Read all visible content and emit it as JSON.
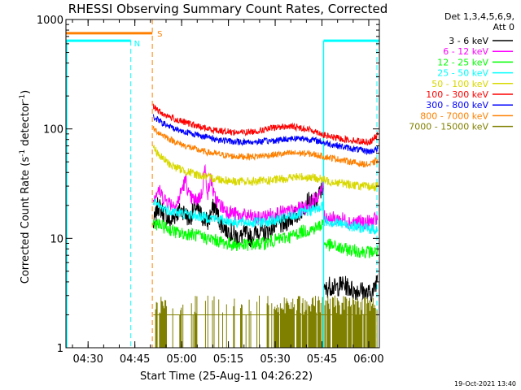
{
  "chart_data": {
    "type": "line",
    "title": "RHESSI Observing Summary Count Rates, Corrected",
    "xlabel": "Start Time (25-Aug-11 04:26:22)",
    "ylabel_main": "Corrected Count Rate (s",
    "ylabel_sup1": "-1",
    "ylabel_mid": " detector",
    "ylabel_sup2": "-1",
    "ylabel_end": ")",
    "y_scale": "log",
    "ylim": [
      1,
      1000
    ],
    "xlim_minutes_from_start": [
      -3.5,
      97
    ],
    "ytick_labels": [
      {
        "label": "1",
        "value": 1
      },
      {
        "label": "10",
        "value": 10
      },
      {
        "label": "100",
        "value": 100
      },
      {
        "label": "1000",
        "value": 1000
      }
    ],
    "xtick_labels": [
      {
        "label": "04:30",
        "minute": 3.6
      },
      {
        "label": "04:45",
        "minute": 18.6
      },
      {
        "label": "05:00",
        "minute": 33.6
      },
      {
        "label": "05:15",
        "minute": 48.6
      },
      {
        "label": "05:30",
        "minute": 63.6
      },
      {
        "label": "05:45",
        "minute": 78.6
      },
      {
        "label": "06:00",
        "minute": 93.6
      }
    ],
    "legend": {
      "placement": "right",
      "header1": "Det 1,3,4,5,6,9,",
      "header2": "Att 0",
      "entries": [
        {
          "label": "3 - 6 keV",
          "color": "#000000"
        },
        {
          "label": "6 - 12 keV",
          "color": "#ff00ff"
        },
        {
          "label": "12 - 25 keV",
          "color": "#00ff00"
        },
        {
          "label": "25 - 50 keV",
          "color": "#00ffff"
        },
        {
          "label": "50 - 100 keV",
          "color": "#d8d800"
        },
        {
          "label": "100 - 300 keV",
          "color": "#ff0000"
        },
        {
          "label": "300 - 800 keV",
          "color": "#0000ff"
        },
        {
          "label": "800 - 7000 keV",
          "color": "#ff8000"
        },
        {
          "label": "7000 - 15000 keV",
          "color": "#808000"
        }
      ]
    },
    "flags": [
      {
        "label": "S",
        "color": "#ff8000",
        "type": "SAA",
        "level": 750,
        "start": -3.5,
        "end": 24.2
      },
      {
        "label": "N",
        "color": "#00ffff",
        "type": "Night",
        "level": 640,
        "spans": [
          [
            -3.5,
            17.3
          ],
          [
            79.1,
            97
          ]
        ]
      }
    ],
    "series": [
      {
        "name": "3 - 6 keV",
        "color": "#000000",
        "noise": 0.09,
        "segments": [
          {
            "x": [
              24.5,
              26,
              28,
              30,
              32,
              34,
              36,
              38,
              40,
              42,
              44,
              46,
              48,
              50,
              52,
              54,
              56,
              58,
              60,
              62,
              64,
              66,
              68,
              70,
              72,
              74,
              76,
              78,
              79
            ],
            "y": [
              13,
              20,
              17,
              14,
              17,
              18,
              15,
              19,
              16,
              14,
              20,
              14,
              12,
              11,
              10,
              11,
              10,
              12,
              11,
              12,
              14,
              13,
              15,
              16,
              18,
              22,
              20,
              26,
              30
            ]
          },
          {
            "x": [
              79.3,
              81,
              83,
              85,
              87,
              89,
              91,
              93,
              95,
              96.5
            ],
            "y": [
              3.2,
              3.7,
              3.5,
              3.8,
              3.6,
              3.3,
              3.4,
              3.1,
              3.2,
              4.6
            ]
          }
        ]
      },
      {
        "name": "6 - 12 keV",
        "color": "#ff00ff",
        "noise": 0.07,
        "segments": [
          {
            "x": [
              24.5,
              26,
              28,
              30,
              32,
              34,
              35,
              36,
              38,
              40,
              41,
              42,
              43,
              44,
              46,
              48,
              50,
              52,
              55,
              58,
              61,
              64,
              67,
              70,
              73,
              76,
              78,
              79
            ],
            "y": [
              24,
              28,
              23,
              21,
              20,
              30,
              34,
              24,
              22,
              25,
              44,
              26,
              36,
              24,
              20,
              18,
              17,
              16,
              16,
              15,
              16,
              17,
              17,
              18,
              19,
              22,
              26,
              29
            ]
          },
          {
            "x": [
              79.3,
              82,
              85,
              88,
              91,
              94,
              96.5
            ],
            "y": [
              16,
              15,
              15,
              14,
              14,
              14,
              15
            ]
          }
        ]
      },
      {
        "name": "12 - 25 keV",
        "color": "#00ff00",
        "noise": 0.06,
        "segments": [
          {
            "x": [
              24.5,
              27,
              30,
              33,
              36,
              39,
              42,
              45,
              48,
              51,
              54,
              57,
              60,
              63,
              66,
              69,
              72,
              75,
              78,
              79
            ],
            "y": [
              14,
              13,
              12,
              11,
              11,
              10.5,
              10,
              9.5,
              9,
              8.7,
              8.7,
              8.8,
              9,
              9.5,
              10,
              10.5,
              11.5,
              12,
              13,
              14
            ]
          },
          {
            "x": [
              79.3,
              82,
              85,
              88,
              91,
              94,
              96.5
            ],
            "y": [
              9,
              8.5,
              8,
              7.8,
              7.6,
              7.5,
              7.6
            ]
          }
        ]
      },
      {
        "name": "25 - 50 keV",
        "color": "#00ffff",
        "noise": 0.05,
        "segments": [
          {
            "x": [
              24.5,
              27,
              30,
              33,
              36,
              39,
              42,
              45,
              48,
              51,
              54,
              57,
              60,
              63,
              66,
              69,
              72,
              75,
              78,
              79
            ],
            "y": [
              21,
              19,
              18,
              17,
              16.5,
              16,
              15.5,
              15,
              14.5,
              14,
              14,
              14,
              14.2,
              14.5,
              15,
              16,
              17,
              18,
              19,
              20
            ]
          },
          {
            "x": [
              79.3,
              82,
              85,
              88,
              91,
              94,
              96.5
            ],
            "y": [
              14.5,
              14,
              13.5,
              13,
              12.5,
              12.2,
              12
            ]
          }
        ]
      },
      {
        "name": "50 - 100 keV",
        "color": "#d8d800",
        "noise": 0.04,
        "segments": [
          {
            "x": [
              24.5,
              27,
              30,
              33,
              36,
              39,
              42,
              45,
              48,
              51,
              54,
              57,
              60,
              63,
              66,
              69,
              72,
              75,
              78,
              79,
              82,
              85,
              88,
              91,
              94,
              96.5
            ],
            "y": [
              68,
              55,
              47,
              43,
              40,
              38,
              36,
              35,
              34,
              33,
              33,
              33,
              33.5,
              34,
              35,
              36,
              36.5,
              36,
              35,
              34,
              33,
              32,
              31,
              30,
              29.5,
              30
            ]
          }
        ]
      },
      {
        "name": "100 - 300 keV",
        "color": "#ff0000",
        "noise": 0.03,
        "segments": [
          {
            "x": [
              24.5,
              27,
              30,
              33,
              36,
              39,
              42,
              45,
              48,
              51,
              54,
              57,
              60,
              63,
              66,
              69,
              72,
              75,
              78,
              79,
              82,
              85,
              88,
              91,
              94,
              96.5
            ],
            "y": [
              160,
              140,
              128,
              118,
              112,
              105,
              100,
              97,
              95,
              93,
              93,
              95,
              98,
              102,
              105,
              105,
              102,
              98,
              92,
              88,
              84,
              81,
              79,
              77,
              76,
              88
            ]
          }
        ]
      },
      {
        "name": "300 - 800 keV",
        "color": "#0000ff",
        "noise": 0.03,
        "segments": [
          {
            "x": [
              24.5,
              27,
              30,
              33,
              36,
              39,
              42,
              45,
              48,
              51,
              54,
              57,
              60,
              63,
              66,
              69,
              72,
              75,
              78,
              79,
              82,
              85,
              88,
              91,
              94,
              96.5
            ],
            "y": [
              130,
              115,
              104,
              97,
              92,
              88,
              84,
              80,
              78,
              76,
              76,
              76,
              77,
              78,
              80,
              82,
              82,
              80,
              77,
              75,
              72,
              69,
              66,
              64,
              62,
              66
            ]
          }
        ]
      },
      {
        "name": "800 - 7000 keV",
        "color": "#ff8000",
        "noise": 0.03,
        "segments": [
          {
            "x": [
              24.5,
              27,
              30,
              33,
              36,
              39,
              42,
              45,
              48,
              51,
              54,
              57,
              60,
              63,
              66,
              69,
              72,
              75,
              78,
              79,
              82,
              85,
              88,
              91,
              94,
              96.5
            ],
            "y": [
              100,
              90,
              80,
              73,
              68,
              64,
              61,
              59,
              57,
              56,
              56,
              56,
              57,
              58,
              59,
              60,
              60,
              59,
              57,
              56,
              54,
              52,
              50,
              48,
              47,
              52
            ]
          }
        ]
      },
      {
        "name": "7000 - 15000 keV",
        "color": "#808000",
        "noise": 0.0,
        "style": "spiky",
        "segments": [
          {
            "x": [
              24.5,
              96.5
            ],
            "y": [
              2.0,
              2.0
            ]
          }
        ]
      }
    ]
  },
  "stamp": "19-Oct-2021 13:40"
}
